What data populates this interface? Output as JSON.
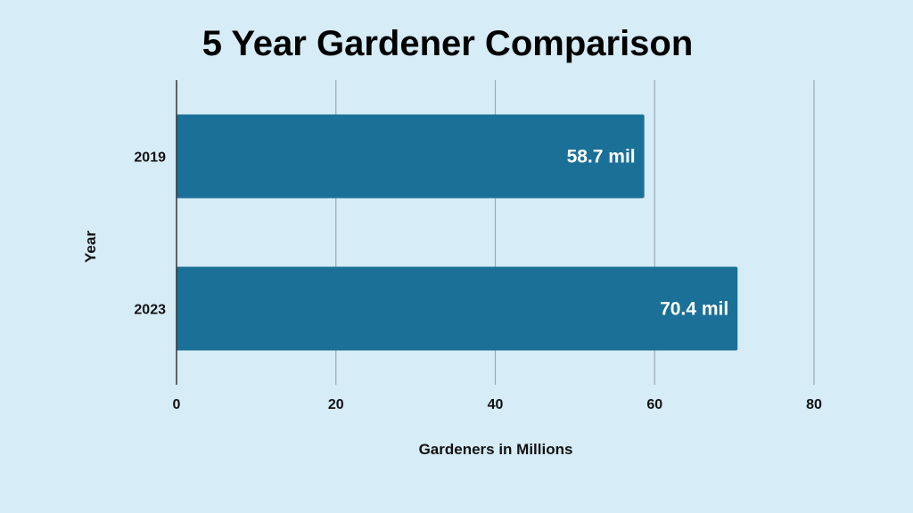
{
  "chart_data": {
    "type": "bar",
    "orientation": "horizontal",
    "title": "5 Year Gardener Comparison",
    "xlabel": "Gardeners in Millions",
    "ylabel": "Year",
    "categories": [
      "2019",
      "2023"
    ],
    "values": [
      58.7,
      70.4
    ],
    "data_labels": [
      "58.7 mil",
      "70.4 mil"
    ],
    "xlim": [
      0,
      80
    ],
    "xticks": [
      0,
      20,
      40,
      60,
      80
    ],
    "grid": true,
    "legend": "none",
    "colors": {
      "bar": "#1b7097",
      "background": "#d6ecf6",
      "grid": "#9aaab3",
      "axis": "#333333"
    }
  }
}
